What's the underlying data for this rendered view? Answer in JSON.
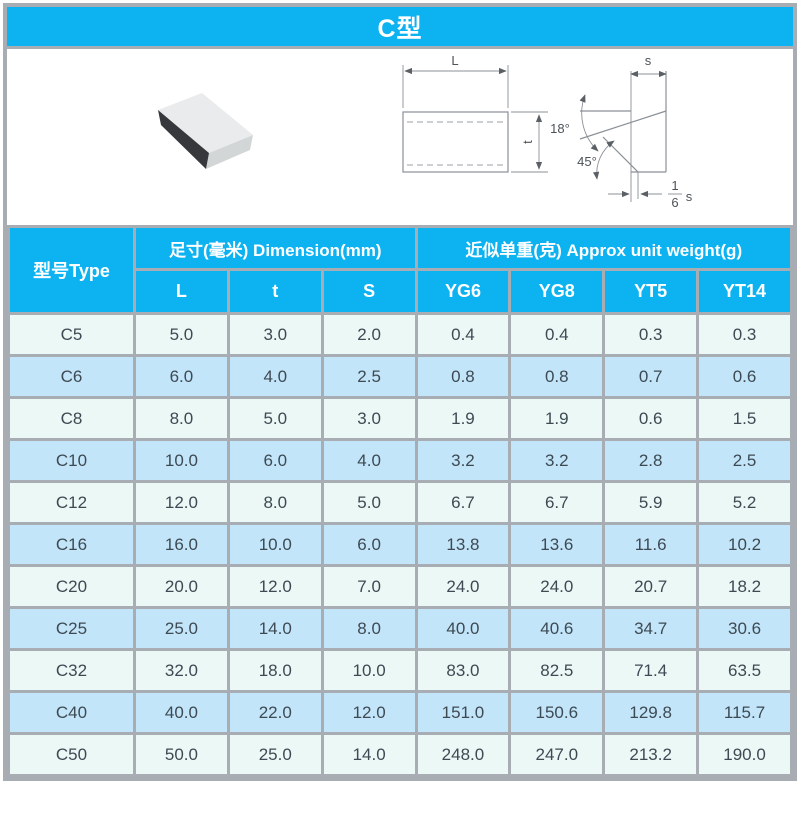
{
  "title_bar": {
    "title": "C型"
  },
  "figure": {
    "labels": {
      "L": "L",
      "t": "t",
      "s": "s",
      "angle_top": "18°",
      "angle_chamfer": "45°",
      "fraction_numerator": "1",
      "fraction_denominator": "6",
      "fraction_unit": "s"
    }
  },
  "table": {
    "type_header": "型号Type",
    "dimension_header": "足寸(毫米) Dimension(mm)",
    "weight_header": "近似单重(克) Approx unit weight(g)",
    "sub_headers": [
      "L",
      "t",
      "S",
      "YG6",
      "YG8",
      "YT5",
      "YT14"
    ],
    "rows": [
      {
        "type": "C5",
        "values": [
          "5.0",
          "3.0",
          "2.0",
          "0.4",
          "0.4",
          "0.3",
          "0.3"
        ]
      },
      {
        "type": "C6",
        "values": [
          "6.0",
          "4.0",
          "2.5",
          "0.8",
          "0.8",
          "0.7",
          "0.6"
        ]
      },
      {
        "type": "C8",
        "values": [
          "8.0",
          "5.0",
          "3.0",
          "1.9",
          "1.9",
          "0.6",
          "1.5"
        ]
      },
      {
        "type": "C10",
        "values": [
          "10.0",
          "6.0",
          "4.0",
          "3.2",
          "3.2",
          "2.8",
          "2.5"
        ]
      },
      {
        "type": "C12",
        "values": [
          "12.0",
          "8.0",
          "5.0",
          "6.7",
          "6.7",
          "5.9",
          "5.2"
        ]
      },
      {
        "type": "C16",
        "values": [
          "16.0",
          "10.0",
          "6.0",
          "13.8",
          "13.6",
          "11.6",
          "10.2"
        ]
      },
      {
        "type": "C20",
        "values": [
          "20.0",
          "12.0",
          "7.0",
          "24.0",
          "24.0",
          "20.7",
          "18.2"
        ]
      },
      {
        "type": "C25",
        "values": [
          "25.0",
          "14.0",
          "8.0",
          "40.0",
          "40.6",
          "34.7",
          "30.6"
        ]
      },
      {
        "type": "C32",
        "values": [
          "32.0",
          "18.0",
          "10.0",
          "83.0",
          "82.5",
          "71.4",
          "63.5"
        ]
      },
      {
        "type": "C40",
        "values": [
          "40.0",
          "22.0",
          "12.0",
          "151.0",
          "150.6",
          "129.8",
          "115.7"
        ]
      },
      {
        "type": "C50",
        "values": [
          "50.0",
          "25.0",
          "14.0",
          "248.0",
          "247.0",
          "213.2",
          "190.0"
        ]
      }
    ]
  },
  "colors": {
    "accent_blue": "#0db3f1",
    "row_light": "#ecf8f6",
    "row_blue": "#c3e5f9",
    "border_gray": "#a8adb3",
    "text_dark": "#3d4a53"
  }
}
